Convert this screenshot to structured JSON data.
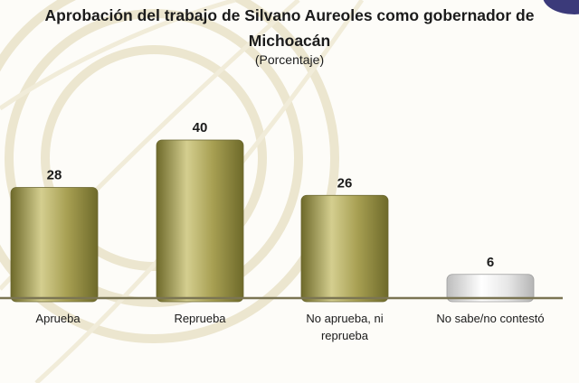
{
  "chart_data": {
    "type": "bar",
    "title": "Aprobación del trabajo de Silvano Aureoles como gobernador de Michoacán",
    "title_lines": [
      "Aprobación del trabajo de Silvano Aureoles como gobernador de",
      "Michoacán"
    ],
    "subtitle": "(Porcentaje)",
    "categories": [
      "Aprueba",
      "Reprueba",
      "No aprueba, ni reprueba",
      "No sabe/no contestó"
    ],
    "category_lines": [
      [
        "Aprueba"
      ],
      [
        "Reprueba"
      ],
      [
        "No aprueba, ni",
        "reprueba"
      ],
      [
        "No sabe/no contestó"
      ]
    ],
    "values": [
      28,
      40,
      26,
      6
    ],
    "data_labels": [
      "28",
      "40",
      "26",
      "6"
    ],
    "ylim": [
      0,
      40
    ],
    "grid": false,
    "legend": "none",
    "colors": {
      "main": "#a79f52",
      "light": "#d4ce8f",
      "dark": "#6e6a2a",
      "other": "#e7e7e7",
      "axis": "#7b7553"
    }
  }
}
